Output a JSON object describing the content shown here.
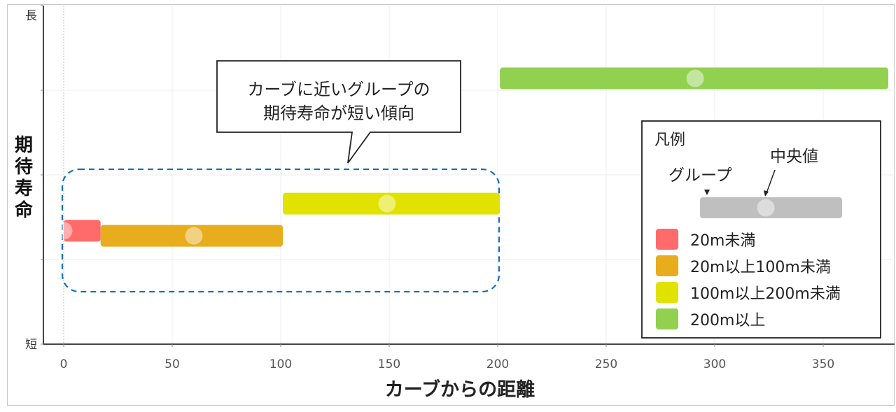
{
  "chart_data": {
    "type": "bar",
    "orientation": "horizontal-range",
    "xlabel": "カーブからの距離",
    "ylabel": "期待寿命",
    "y_top_label": "長",
    "y_bottom_label": "短",
    "xlim": [
      -10,
      382
    ],
    "xticks": [
      0,
      50,
      100,
      150,
      200,
      250,
      300,
      350
    ],
    "xtick_labels": [
      "0",
      "50",
      "100",
      "150",
      "200",
      "250",
      "300",
      "350"
    ],
    "grid": true,
    "series": [
      {
        "name": "20m未満",
        "color": "#ff6b6b",
        "x_start": 0,
        "x_end": 17,
        "median": 0,
        "level": 0.335
      },
      {
        "name": "20m以上100m未満",
        "color": "#e8ad1c",
        "x_start": 17,
        "x_end": 101,
        "median": 60,
        "level": 0.32
      },
      {
        "name": "100m以上200m未満",
        "color": "#e2e200",
        "x_start": 101,
        "x_end": 201,
        "median": 149,
        "level": 0.415
      },
      {
        "name": "200m以上",
        "color": "#92d050",
        "x_start": 201,
        "x_end": 380,
        "median": 291,
        "level": 0.785
      }
    ],
    "callout": {
      "lines": [
        "カーブに近いグループの",
        "期待寿命が短い傾向"
      ]
    },
    "legend": {
      "title": "凡例",
      "group_label": "グループ",
      "median_label": "中央値",
      "sample_color": "#bfbfbf",
      "placement": "right"
    }
  }
}
